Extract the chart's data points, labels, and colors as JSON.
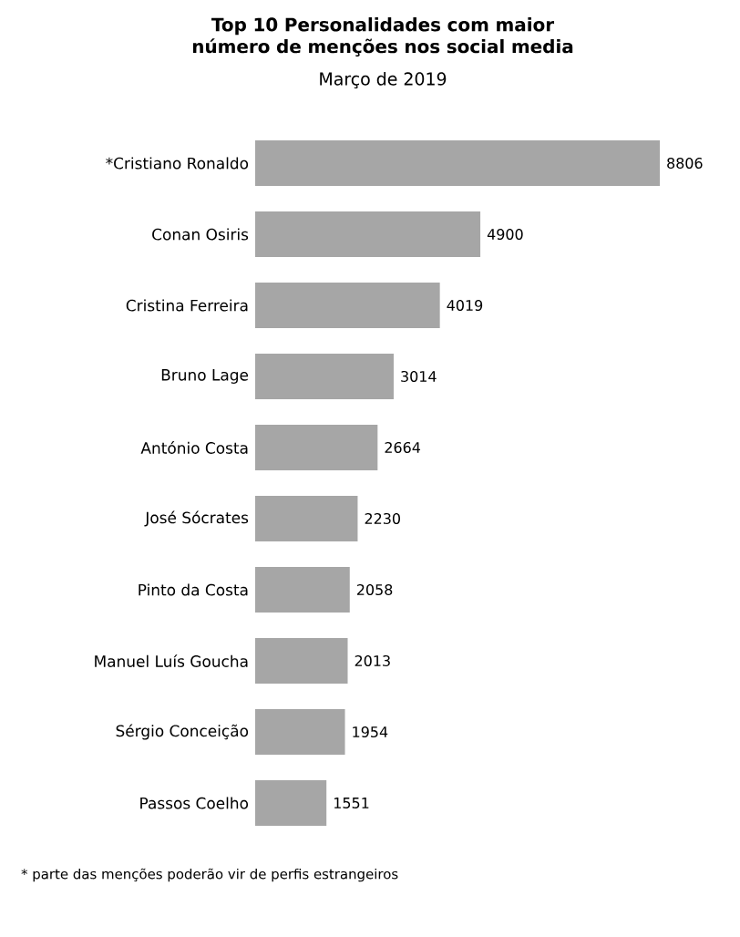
{
  "chart_data": {
    "type": "bar",
    "orientation": "horizontal",
    "title": "Top 10 Personalidades com maior número de menções nos social media",
    "subtitle": "Março de 2019",
    "categories": [
      "*Cristiano Ronaldo",
      "Conan Osiris",
      "Cristina Ferreira",
      "Bruno Lage",
      "António Costa",
      "José Sócrates",
      "Pinto da Costa",
      "Manuel Luís Goucha",
      "Sérgio Conceição",
      "Passos Coelho"
    ],
    "values": [
      8806,
      4900,
      4019,
      3014,
      2664,
      2230,
      2058,
      2013,
      1954,
      1551
    ],
    "color": "#a6a6a6",
    "data_labels": true,
    "annotations": [
      "*  parte das menções poderão vir de perfis estrangeiros"
    ]
  }
}
